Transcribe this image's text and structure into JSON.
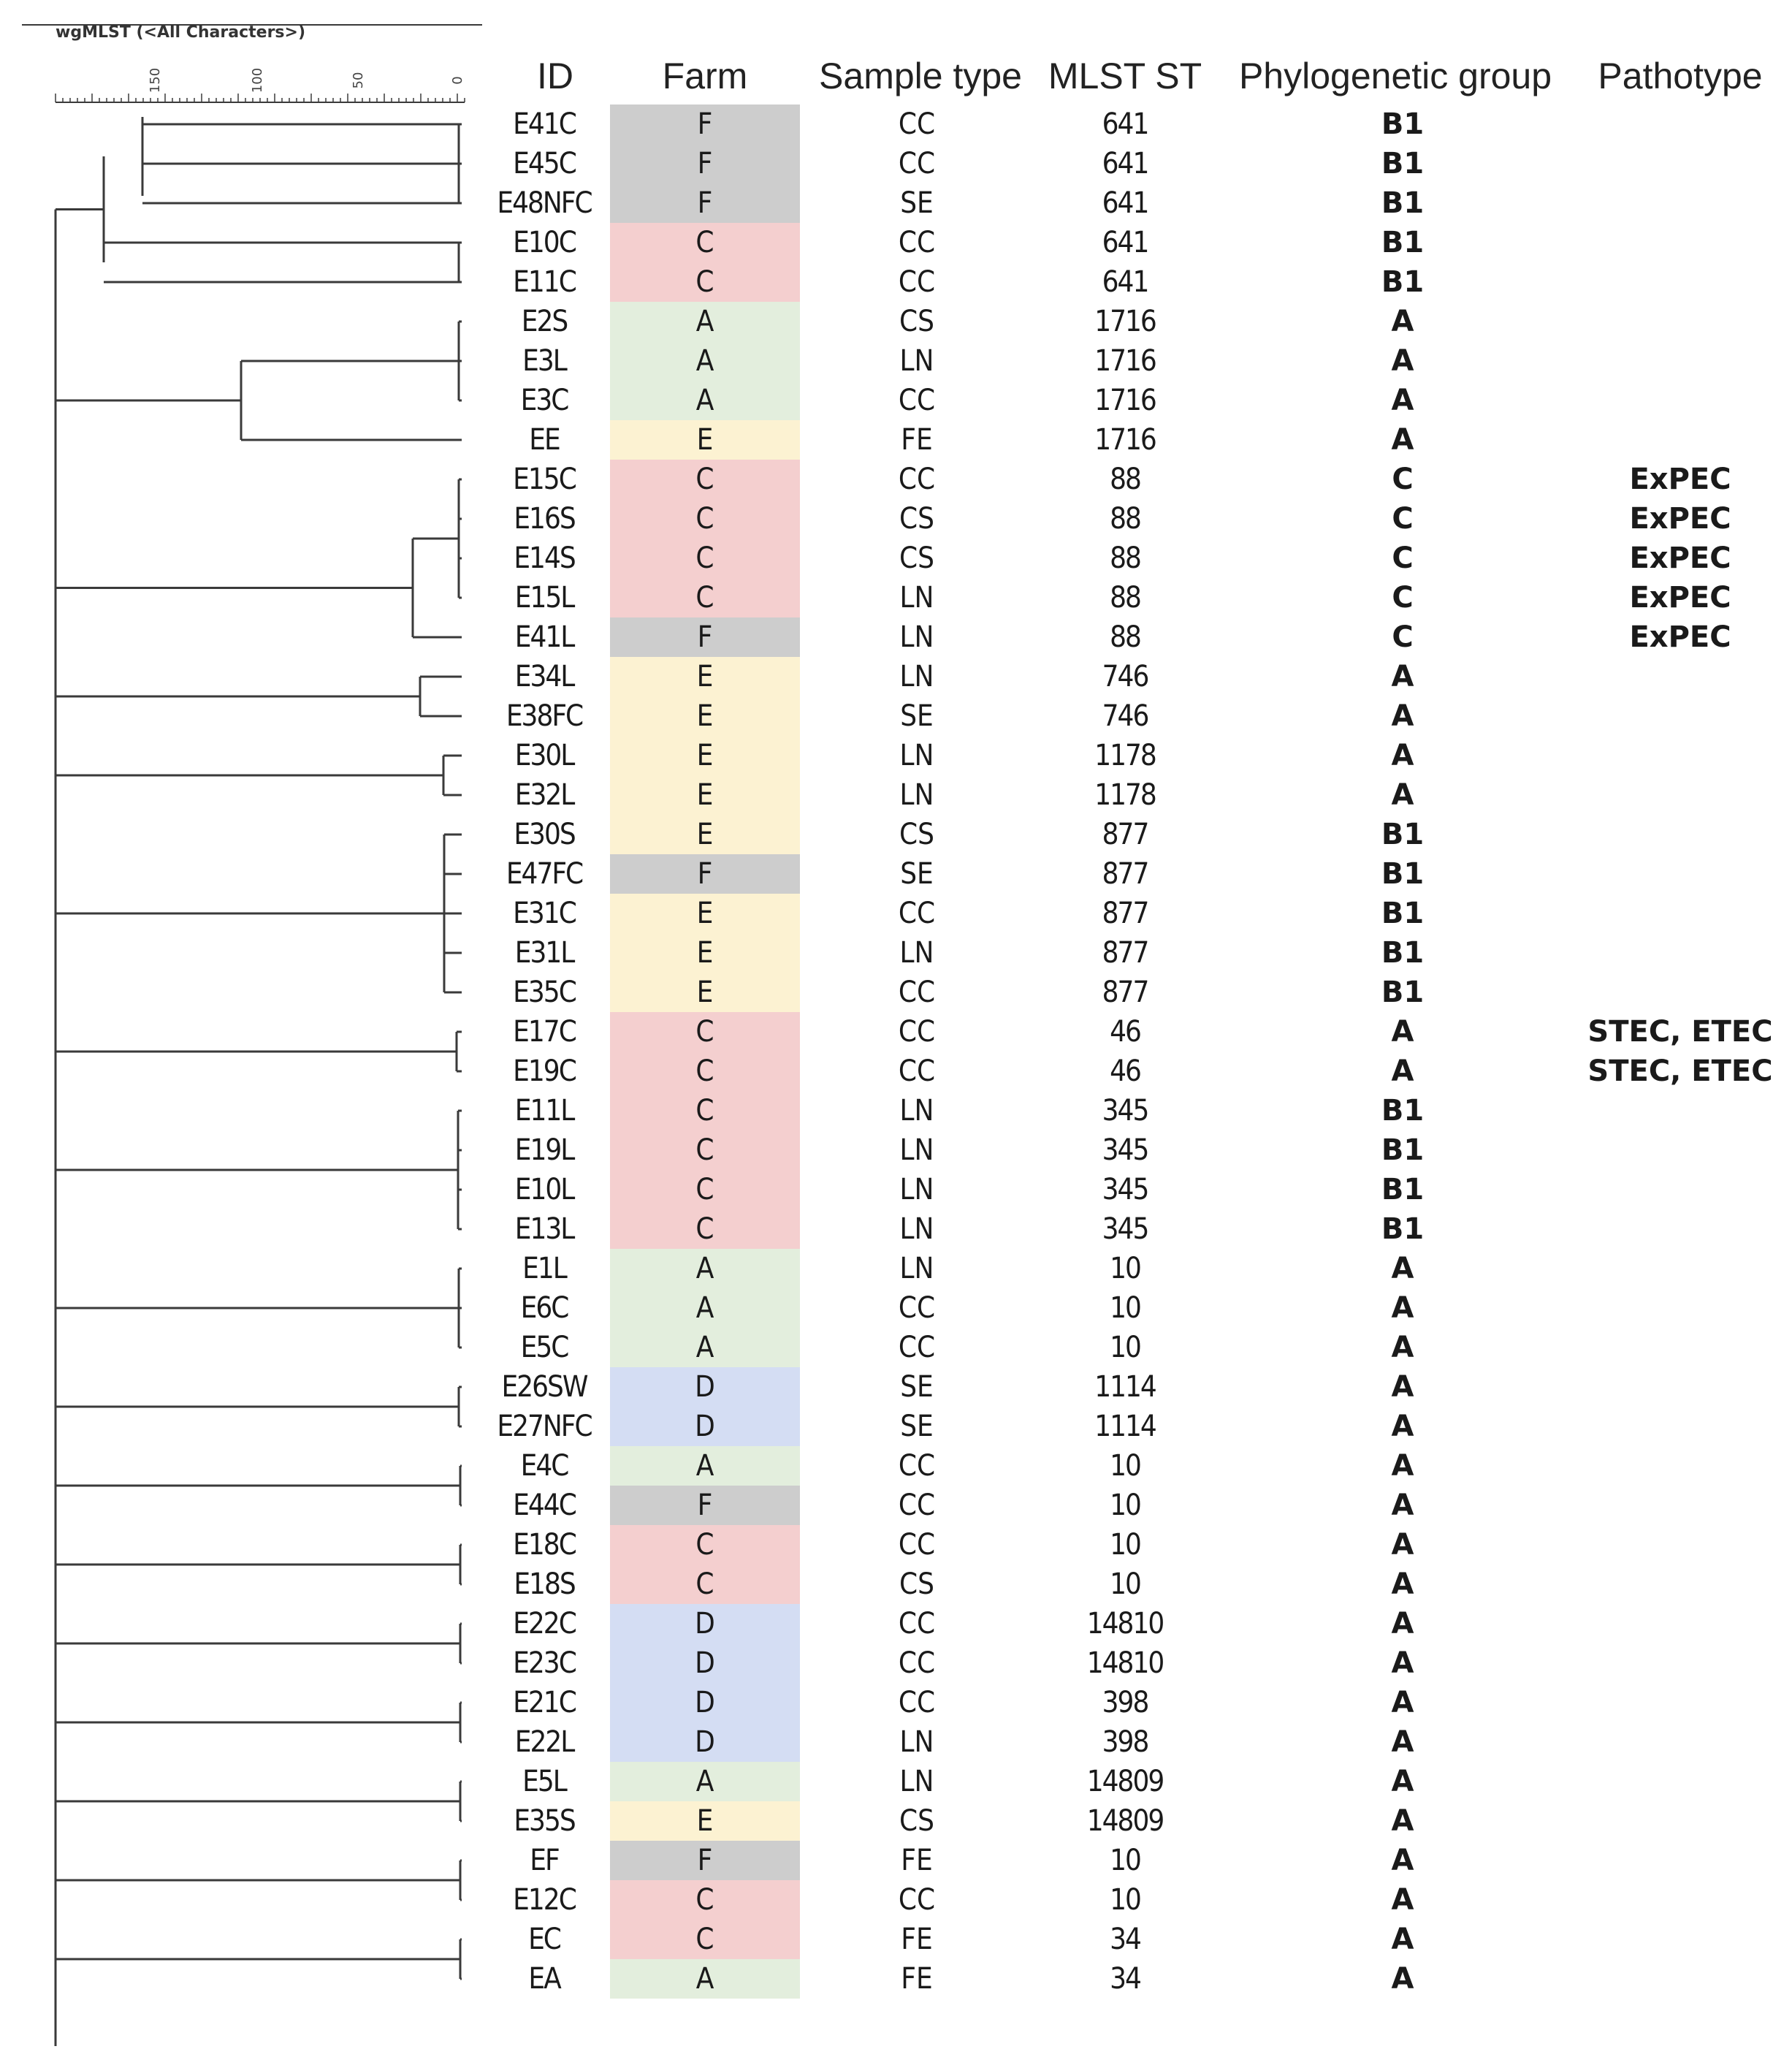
{
  "scale": {
    "title": "wgMLST (<All Characters>)",
    "tick_labels": [
      "150",
      "100",
      "50",
      "0"
    ]
  },
  "headers": {
    "id": "ID",
    "farm": "Farm",
    "sample_type": "Sample type",
    "mlst_st": "MLST ST",
    "phylogenetic_group": "Phylogenetic group",
    "pathotype": "Pathotype"
  },
  "farm_colors": {
    "A": "#e3eedd",
    "C": "#f4cfcf",
    "D": "#d4ddf3",
    "E": "#fcf2d2",
    "F": "#cdcdcd"
  },
  "rows": [
    {
      "id": "E41C",
      "farm": "F",
      "sample": "CC",
      "st": "641",
      "phylo": "B1",
      "patho": ""
    },
    {
      "id": "E45C",
      "farm": "F",
      "sample": "CC",
      "st": "641",
      "phylo": "B1",
      "patho": ""
    },
    {
      "id": "E48NFC",
      "farm": "F",
      "sample": "SE",
      "st": "641",
      "phylo": "B1",
      "patho": ""
    },
    {
      "id": "E10C",
      "farm": "C",
      "sample": "CC",
      "st": "641",
      "phylo": "B1",
      "patho": ""
    },
    {
      "id": "E11C",
      "farm": "C",
      "sample": "CC",
      "st": "641",
      "phylo": "B1",
      "patho": ""
    },
    {
      "id": "E2S",
      "farm": "A",
      "sample": "CS",
      "st": "1716",
      "phylo": "A",
      "patho": ""
    },
    {
      "id": "E3L",
      "farm": "A",
      "sample": "LN",
      "st": "1716",
      "phylo": "A",
      "patho": ""
    },
    {
      "id": "E3C",
      "farm": "A",
      "sample": "CC",
      "st": "1716",
      "phylo": "A",
      "patho": ""
    },
    {
      "id": "EE",
      "farm": "E",
      "sample": "FE",
      "st": "1716",
      "phylo": "A",
      "patho": ""
    },
    {
      "id": "E15C",
      "farm": "C",
      "sample": "CC",
      "st": "88",
      "phylo": "C",
      "patho": "ExPEC"
    },
    {
      "id": "E16S",
      "farm": "C",
      "sample": "CS",
      "st": "88",
      "phylo": "C",
      "patho": "ExPEC"
    },
    {
      "id": "E14S",
      "farm": "C",
      "sample": "CS",
      "st": "88",
      "phylo": "C",
      "patho": "ExPEC"
    },
    {
      "id": "E15L",
      "farm": "C",
      "sample": "LN",
      "st": "88",
      "phylo": "C",
      "patho": "ExPEC"
    },
    {
      "id": "E41L",
      "farm": "F",
      "sample": "LN",
      "st": "88",
      "phylo": "C",
      "patho": "ExPEC"
    },
    {
      "id": "E34L",
      "farm": "E",
      "sample": "LN",
      "st": "746",
      "phylo": "A",
      "patho": ""
    },
    {
      "id": "E38FC",
      "farm": "E",
      "sample": "SE",
      "st": "746",
      "phylo": "A",
      "patho": ""
    },
    {
      "id": "E30L",
      "farm": "E",
      "sample": "LN",
      "st": "1178",
      "phylo": "A",
      "patho": ""
    },
    {
      "id": "E32L",
      "farm": "E",
      "sample": "LN",
      "st": "1178",
      "phylo": "A",
      "patho": ""
    },
    {
      "id": "E30S",
      "farm": "E",
      "sample": "CS",
      "st": "877",
      "phylo": "B1",
      "patho": ""
    },
    {
      "id": "E47FC",
      "farm": "F",
      "sample": "SE",
      "st": "877",
      "phylo": "B1",
      "patho": ""
    },
    {
      "id": "E31C",
      "farm": "E",
      "sample": "CC",
      "st": "877",
      "phylo": "B1",
      "patho": ""
    },
    {
      "id": "E31L",
      "farm": "E",
      "sample": "LN",
      "st": "877",
      "phylo": "B1",
      "patho": ""
    },
    {
      "id": "E35C",
      "farm": "E",
      "sample": "CC",
      "st": "877",
      "phylo": "B1",
      "patho": ""
    },
    {
      "id": "E17C",
      "farm": "C",
      "sample": "CC",
      "st": "46",
      "phylo": "A",
      "patho": "STEC, ETEC"
    },
    {
      "id": "E19C",
      "farm": "C",
      "sample": "CC",
      "st": "46",
      "phylo": "A",
      "patho": "STEC, ETEC"
    },
    {
      "id": "E11L",
      "farm": "C",
      "sample": "LN",
      "st": "345",
      "phylo": "B1",
      "patho": ""
    },
    {
      "id": "E19L",
      "farm": "C",
      "sample": "LN",
      "st": "345",
      "phylo": "B1",
      "patho": ""
    },
    {
      "id": "E10L",
      "farm": "C",
      "sample": "LN",
      "st": "345",
      "phylo": "B1",
      "patho": ""
    },
    {
      "id": "E13L",
      "farm": "C",
      "sample": "LN",
      "st": "345",
      "phylo": "B1",
      "patho": ""
    },
    {
      "id": "E1L",
      "farm": "A",
      "sample": "LN",
      "st": "10",
      "phylo": "A",
      "patho": ""
    },
    {
      "id": "E6C",
      "farm": "A",
      "sample": "CC",
      "st": "10",
      "phylo": "A",
      "patho": ""
    },
    {
      "id": "E5C",
      "farm": "A",
      "sample": "CC",
      "st": "10",
      "phylo": "A",
      "patho": ""
    },
    {
      "id": "E26SW",
      "farm": "D",
      "sample": "SE",
      "st": "1114",
      "phylo": "A",
      "patho": ""
    },
    {
      "id": "E27NFC",
      "farm": "D",
      "sample": "SE",
      "st": "1114",
      "phylo": "A",
      "patho": ""
    },
    {
      "id": "E4C",
      "farm": "A",
      "sample": "CC",
      "st": "10",
      "phylo": "A",
      "patho": ""
    },
    {
      "id": "E44C",
      "farm": "F",
      "sample": "CC",
      "st": "10",
      "phylo": "A",
      "patho": ""
    },
    {
      "id": "E18C",
      "farm": "C",
      "sample": "CC",
      "st": "10",
      "phylo": "A",
      "patho": ""
    },
    {
      "id": "E18S",
      "farm": "C",
      "sample": "CS",
      "st": "10",
      "phylo": "A",
      "patho": ""
    },
    {
      "id": "E22C",
      "farm": "D",
      "sample": "CC",
      "st": "14810",
      "phylo": "A",
      "patho": ""
    },
    {
      "id": "E23C",
      "farm": "D",
      "sample": "CC",
      "st": "14810",
      "phylo": "A",
      "patho": ""
    },
    {
      "id": "E21C",
      "farm": "D",
      "sample": "CC",
      "st": "398",
      "phylo": "A",
      "patho": ""
    },
    {
      "id": "E22L",
      "farm": "D",
      "sample": "LN",
      "st": "398",
      "phylo": "A",
      "patho": ""
    },
    {
      "id": "E5L",
      "farm": "A",
      "sample": "LN",
      "st": "14809",
      "phylo": "A",
      "patho": ""
    },
    {
      "id": "E35S",
      "farm": "E",
      "sample": "CS",
      "st": "14809",
      "phylo": "A",
      "patho": ""
    },
    {
      "id": "EF",
      "farm": "F",
      "sample": "FE",
      "st": "10",
      "phylo": "A",
      "patho": ""
    },
    {
      "id": "E12C",
      "farm": "C",
      "sample": "CC",
      "st": "10",
      "phylo": "A",
      "patho": ""
    },
    {
      "id": "EC",
      "farm": "C",
      "sample": "FE",
      "st": "34",
      "phylo": "A",
      "patho": ""
    },
    {
      "id": "EA",
      "farm": "A",
      "sample": "FE",
      "st": "34",
      "phylo": "A",
      "patho": ""
    }
  ],
  "clusters": [
    {
      "members": [
        0,
        1,
        2,
        3,
        4
      ],
      "groups": [
        [
          0,
          1,
          2
        ],
        [
          3,
          4
        ]
      ]
    },
    {
      "members": [
        5,
        6,
        7,
        8
      ]
    },
    {
      "members": [
        9,
        10,
        11,
        12,
        13
      ]
    },
    {
      "members": [
        14,
        15
      ]
    },
    {
      "members": [
        16,
        17
      ]
    },
    {
      "members": [
        18,
        19,
        20,
        21,
        22
      ]
    },
    {
      "members": [
        23,
        24
      ]
    },
    {
      "members": [
        25,
        26,
        27,
        28
      ]
    },
    {
      "members": [
        29,
        30,
        31
      ]
    },
    {
      "members": [
        32,
        33
      ]
    },
    {
      "members": [
        34,
        35
      ]
    },
    {
      "members": [
        36,
        37
      ]
    },
    {
      "members": [
        38,
        39
      ]
    },
    {
      "members": [
        40,
        41
      ]
    },
    {
      "members": [
        42,
        43
      ]
    },
    {
      "members": [
        44,
        45
      ]
    },
    {
      "members": [
        46,
        47
      ]
    }
  ]
}
